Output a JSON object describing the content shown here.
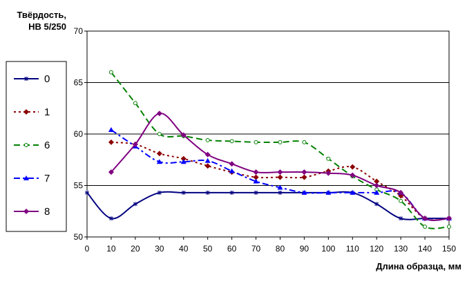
{
  "chart_data": {
    "type": "line",
    "ylabel": [
      "Твёрдость,",
      "НВ 5/250"
    ],
    "xlabel": "Длина образца, мм",
    "xlim": [
      0,
      150
    ],
    "ylim": [
      50,
      70
    ],
    "x_ticks": [
      "0",
      "10",
      "20",
      "30",
      "40",
      "50",
      "60",
      "70",
      "80",
      "90",
      "100",
      "110",
      "120",
      "130",
      "140",
      "150"
    ],
    "y_ticks": [
      "50",
      "55",
      "60",
      "65",
      "70"
    ],
    "grid": "horizontal",
    "legend_position": "left",
    "series": [
      {
        "name": "0",
        "color": "#000080",
        "dash": "solid",
        "marker": "star",
        "x": [
          0,
          10,
          20,
          30,
          40,
          50,
          60,
          70,
          80,
          90,
          100,
          110,
          120,
          130,
          140,
          150
        ],
        "y": [
          54.3,
          51.8,
          53.2,
          54.3,
          54.3,
          54.3,
          54.3,
          54.3,
          54.3,
          54.3,
          54.3,
          54.3,
          53.2,
          51.8,
          51.8,
          51.8
        ]
      },
      {
        "name": "1",
        "color": "#8B0000",
        "dash": "dot",
        "marker": "diamond",
        "x": [
          10,
          20,
          30,
          40,
          50,
          60,
          70,
          80,
          90,
          100,
          110,
          120,
          130,
          140,
          150
        ],
        "y": [
          59.2,
          59.0,
          58.1,
          57.6,
          56.9,
          56.3,
          55.8,
          55.8,
          55.8,
          56.4,
          56.8,
          55.4,
          54.0,
          51.8,
          51.8
        ]
      },
      {
        "name": "6",
        "color": "#008000",
        "dash": "dash",
        "marker": "circle",
        "x": [
          10,
          20,
          30,
          40,
          50,
          60,
          70,
          80,
          90,
          100,
          110,
          120,
          130,
          140,
          150
        ],
        "y": [
          66.0,
          63.0,
          60.0,
          59.8,
          59.4,
          59.3,
          59.2,
          59.2,
          59.2,
          57.6,
          55.9,
          54.6,
          53.5,
          51.0,
          51.0
        ]
      },
      {
        "name": "7",
        "color": "#0000FF",
        "dash": "dashdot",
        "marker": "triangle",
        "x": [
          10,
          20,
          30,
          40,
          50,
          60,
          70,
          80,
          90,
          100,
          110,
          120,
          130,
          140,
          150
        ],
        "y": [
          60.4,
          58.8,
          57.3,
          57.3,
          57.4,
          56.4,
          55.4,
          54.8,
          54.3,
          54.3,
          54.3,
          54.3,
          54.3,
          51.8,
          51.8
        ]
      },
      {
        "name": "8",
        "color": "#800080",
        "dash": "solid",
        "marker": "diamond",
        "x": [
          10,
          20,
          30,
          40,
          50,
          60,
          70,
          80,
          90,
          100,
          110,
          120,
          130,
          140,
          150
        ],
        "y": [
          56.3,
          59.0,
          62.0,
          59.9,
          58.0,
          57.1,
          56.3,
          56.3,
          56.3,
          56.2,
          56.0,
          55.0,
          54.3,
          51.8,
          51.8
        ]
      }
    ]
  }
}
